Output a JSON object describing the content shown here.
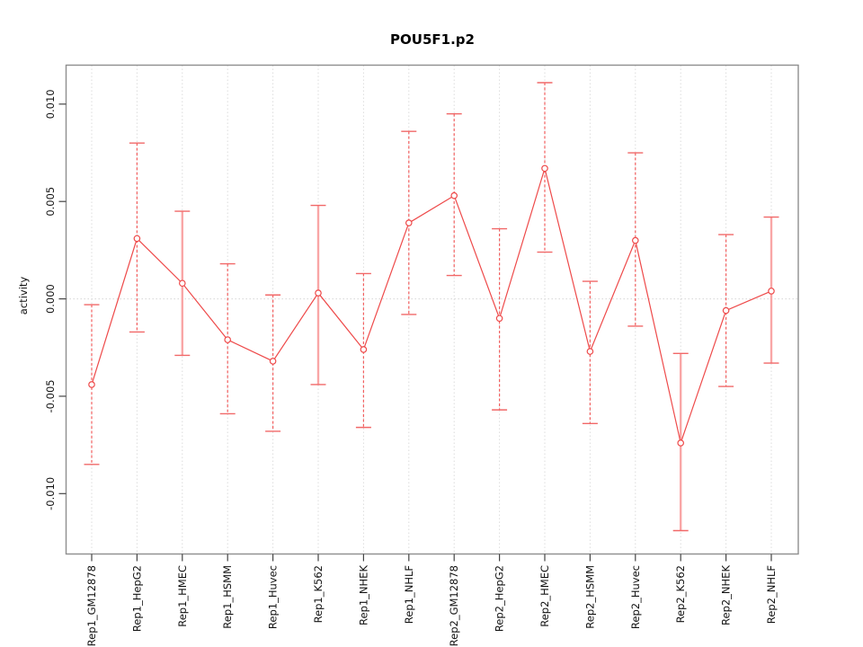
{
  "chart_data": {
    "type": "line",
    "title": "POU5F1.p2",
    "ylabel": "activity",
    "xlabel": "",
    "legend": "none",
    "grid": "dotted vertical gridline at each category; dotted horizontal line at y=0",
    "ylim": [
      -0.0131,
      0.012
    ],
    "ytick_values": [
      0.01,
      0.005,
      0.0,
      -0.005,
      -0.01
    ],
    "ytick_labels": [
      "0.010",
      "0.005",
      "0.000",
      "-0.005",
      "-0.010"
    ],
    "categories": [
      "Rep1_GM12878",
      "Rep1_HepG2",
      "Rep1_HMEC",
      "Rep1_HSMM",
      "Rep1_Huvec",
      "Rep1_K562",
      "Rep1_NHEK",
      "Rep1_NHLF",
      "Rep2_GM12878",
      "Rep2_HepG2",
      "Rep2_HMEC",
      "Rep2_HSMM",
      "Rep2_Huvec",
      "Rep2_K562",
      "Rep2_NHEK",
      "Rep2_NHLF"
    ],
    "series": [
      {
        "name": "activity",
        "marker": "open-circle",
        "values": [
          -0.0044,
          0.0031,
          0.0008,
          -0.0021,
          -0.0032,
          0.0003,
          -0.0026,
          0.0039,
          0.0053,
          -0.001,
          0.0067,
          -0.0027,
          0.003,
          -0.0074,
          -0.0006,
          0.0004
        ],
        "ci_upper": [
          -0.0003,
          0.008,
          0.0045,
          0.0018,
          0.0002,
          0.0048,
          0.0013,
          0.0086,
          0.0095,
          0.0036,
          0.0111,
          0.0009,
          0.0075,
          -0.0028,
          0.0033,
          0.0042
        ],
        "ci_lower": [
          -0.0085,
          -0.0017,
          -0.0029,
          -0.0059,
          -0.0068,
          -0.0044,
          -0.0066,
          -0.0008,
          0.0012,
          -0.0057,
          0.0024,
          -0.0064,
          -0.0014,
          -0.0119,
          -0.0045,
          -0.0033
        ]
      }
    ],
    "wide_solid_error_bars": [
      "Rep1_HMEC",
      "Rep1_K562",
      "Rep2_K562",
      "Rep2_NHLF"
    ],
    "colors": {
      "line": "#ee4a4a",
      "marker_stroke": "#ee4a4a",
      "marker_fill": "#ffffff",
      "error_bar_dashed": "#f25f5f",
      "error_bar_wide": "#f9a6a6",
      "error_bar_cap": "#f16868",
      "gridline": "#dcdcdc",
      "zero_line": "#d6d6d6",
      "frame": "#8f8f8f",
      "tick": "#444444",
      "text": "#111111"
    }
  }
}
